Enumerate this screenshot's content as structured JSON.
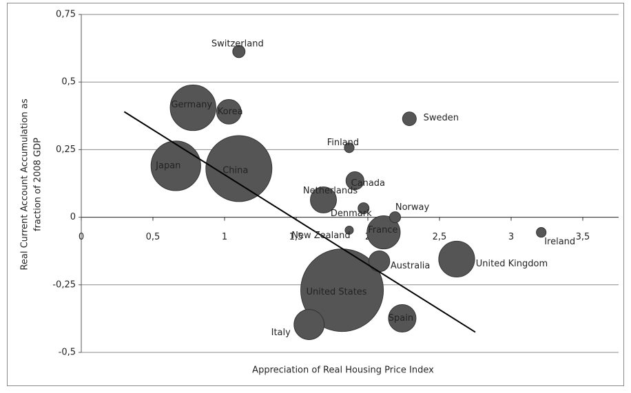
{
  "chart_data": {
    "type": "bubble",
    "xlabel": "Appreciation of Real Housing Price Index",
    "ylabel": [
      "Real Current Account Accumulation as",
      "fraction of 2008 GDP"
    ],
    "labels": [
      "United States",
      "China",
      "Japan",
      "Germany",
      "United Kingdom",
      "France",
      "Italy",
      "Spain",
      "Netherlands",
      "Korea",
      "Australia",
      "Canada",
      "Sweden",
      "Switzerland",
      "Denmark",
      "Norway",
      "Finland",
      "Ireland",
      "New Zealand"
    ],
    "x": [
      1.82,
      1.1,
      0.66,
      0.78,
      2.62,
      2.11,
      1.59,
      2.24,
      1.69,
      1.03,
      2.08,
      1.91,
      2.29,
      1.1,
      1.97,
      2.19,
      1.87,
      3.21,
      1.87
    ],
    "values": [
      -0.27,
      0.18,
      0.19,
      0.405,
      -0.155,
      -0.056,
      -0.397,
      -0.374,
      0.064,
      0.39,
      -0.163,
      0.135,
      0.364,
      0.613,
      0.033,
      0.0,
      0.257,
      -0.056,
      -0.048
    ],
    "sizes": [
      36,
      23,
      13,
      11,
      6.8,
      5.8,
      4.8,
      4,
      3.6,
      3.2,
      2.3,
      1.7,
      1,
      0.8,
      0.64,
      0.64,
      0.5,
      0.5,
      0.36
    ],
    "color": "#555555",
    "trendline": {
      "x": [
        0.3,
        2.75
      ],
      "values": [
        0.39,
        -0.425
      ],
      "color": "#000000"
    },
    "xlim": [
      0,
      3.75
    ],
    "ylim": [
      -0.5,
      0.75
    ],
    "xticks": [
      0,
      {
        "value": 0.5,
        "label": "0,5"
      },
      1,
      {
        "value": 1.5,
        "label": "1,5"
      },
      2,
      {
        "value": 2.5,
        "label": "2,5"
      },
      3,
      {
        "value": 3.5,
        "label": "3,5"
      }
    ],
    "yticks": [
      {
        "value": -0.5,
        "label": "-0,5"
      },
      {
        "value": -0.25,
        "label": "-0,25"
      },
      0,
      {
        "value": 0.25,
        "label": "0,25"
      },
      {
        "value": 0.5,
        "label": "0,5"
      },
      {
        "value": 0.75,
        "label": "0,75"
      }
    ],
    "grid": true
  }
}
